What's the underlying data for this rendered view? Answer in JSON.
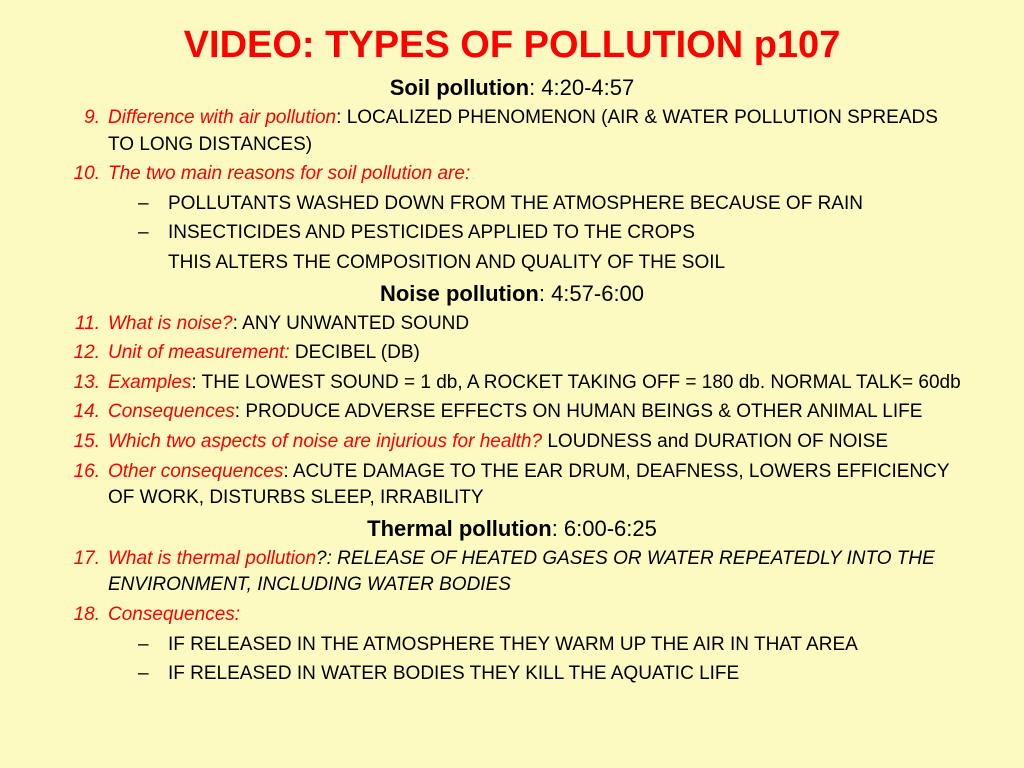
{
  "title": "VIDEO: TYPES OF POLLUTION p107",
  "sections": {
    "soil": {
      "label": "Soil pollution",
      "time": ": 4:20-4:57"
    },
    "noise": {
      "label": "Noise pollution",
      "time": ": 4:57-6:00"
    },
    "thermal": {
      "label": "Thermal pollution",
      "time": ": 6:00-6:25"
    }
  },
  "items": {
    "i9": {
      "num": "9.",
      "q": "Difference with air pollution",
      "sep": ": ",
      "a": "LOCALIZED PHENOMENON (AIR & WATER POLLUTION SPREADS TO LONG DISTANCES)"
    },
    "i10": {
      "num": "10.",
      "q": "The two main reasons for soil pollution are",
      "sep": ":",
      "a": ""
    },
    "i10b1": "POLLUTANTS  WASHED DOWN FROM THE ATMOSPHERE BECAUSE OF RAIN",
    "i10b2": "INSECTICIDES AND PESTICIDES APPLIED TO THE CROPS",
    "i10f": "THIS ALTERS THE COMPOSITION AND QUALITY OF THE SOIL",
    "i11": {
      "num": "11.",
      "q": "What is noise?",
      "sep": ": ",
      "a": "ANY UNWANTED SOUND"
    },
    "i12": {
      "num": "12.",
      "q": " Unit of measurement:",
      "sep": "  ",
      "a": "DECIBEL (DB)"
    },
    "i13": {
      "num": "13.",
      "q": "Examples",
      "sep": ": ",
      "a": "THE LOWEST SOUND = 1 db, A ROCKET TAKING OFF  = 180 db. NORMAL TALK= 60db"
    },
    "i14": {
      "num": "14.",
      "q": "Consequences",
      "sep": ": ",
      "a": "PRODUCE ADVERSE EFFECTS ON HUMAN BEINGS & OTHER ANIMAL LIFE"
    },
    "i15": {
      "num": "15.",
      "q": "Which two aspects of noise are injurious for health",
      "sep": "? ",
      "a": "LOUDNESS and DURATION OF NOISE"
    },
    "i16": {
      "num": "16.",
      "q": "Other consequences",
      "sep": ": ",
      "a": "ACUTE DAMAGE TO THE  EAR DRUM, DEAFNESS, LOWERS EFFICIENCY OF WORK, DISTURBS SLEEP, IRRABILITY"
    },
    "i17": {
      "num": "17.",
      "q": "What is thermal pollution",
      "sep": "",
      "a": "?: RELEASE OF HEATED GASES OR WATER REPEATEDLY INTO THE ENVIRONMENT, INCLUDING WATER BODIES"
    },
    "i18": {
      "num": "18.",
      "q": "Consequences",
      "sep": ":",
      "a": ""
    },
    "i18b1": "IF RELEASED IN THE ATMOSPHERE THEY WARM UP THE AIR IN THAT AREA",
    "i18b2": "IF RELEASED IN WATER BODIES THEY KILL THE AQUATIC LIFE"
  },
  "colors": {
    "title": "#ff0000",
    "question": "#ff0000",
    "bg": "#fcfac1",
    "text": "#000000"
  }
}
